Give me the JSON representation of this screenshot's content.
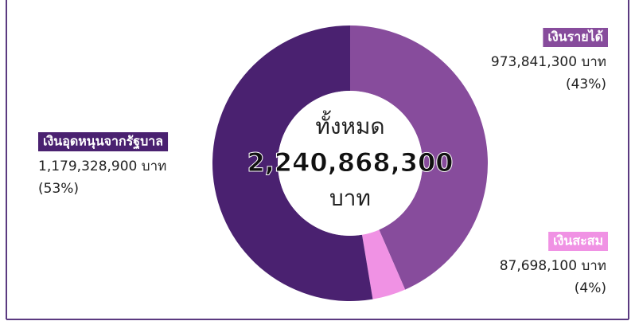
{
  "chart_data": {
    "type": "donut",
    "center_title": "ทั้งหมด",
    "total_label": "2,240,868,300",
    "center_unit": "บาท",
    "categories": [
      "เงินรายได้",
      "เงินสะสม",
      "เงินอุดหนุนจากรัฐบาล"
    ],
    "values": [
      973841300,
      87698100,
      1179328900
    ],
    "value_labels": [
      "973,841,300 บาท",
      "87,698,100 บาท",
      "1,179,328,900 บาท"
    ],
    "percent_labels": [
      "(43%)",
      "(4%)",
      "(53%)"
    ],
    "colors": [
      "#874c9c",
      "#f092e4",
      "#4a2170"
    ]
  }
}
